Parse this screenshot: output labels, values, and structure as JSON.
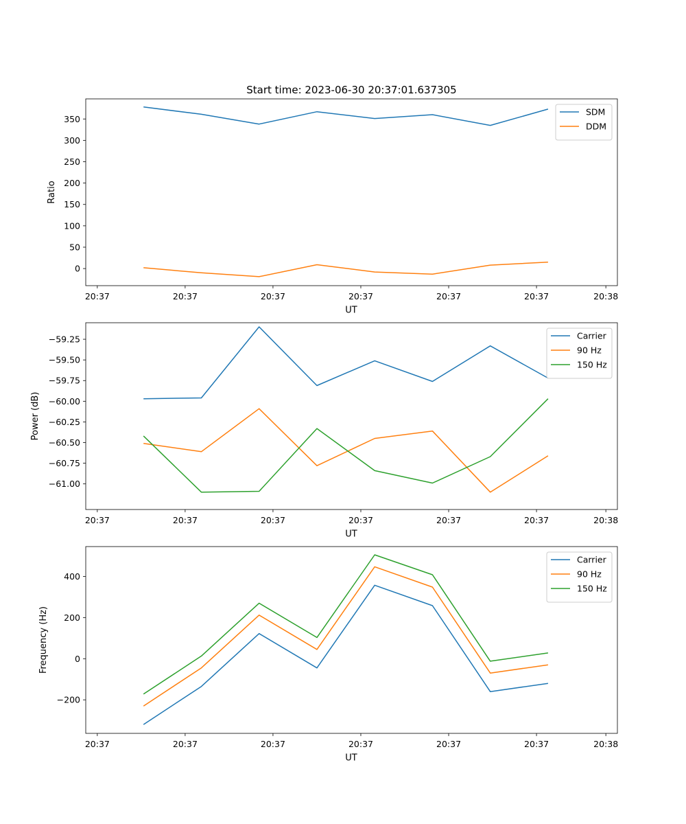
{
  "figure_title": "Start time: 2023-06-30 20:37:01.637305",
  "colors": {
    "blue": "#1f77b4",
    "orange": "#ff7f0e",
    "green": "#2ca02c"
  },
  "chart_data": [
    {
      "type": "line",
      "title": "Start time: 2023-06-30 20:37:01.637305",
      "xlabel": "UT",
      "ylabel": "Ratio",
      "xticklabels": [
        "20:37",
        "20:37",
        "20:37",
        "20:37",
        "20:37",
        "20:37",
        "20:38"
      ],
      "x": [
        1,
        2,
        3,
        4,
        5,
        6,
        7,
        8
      ],
      "xlim": [
        0,
        9.2
      ],
      "xticks": [
        0.2,
        1.72,
        3.24,
        4.76,
        6.28,
        7.8,
        9.0
      ],
      "ylim": [
        -40,
        397
      ],
      "yticks": [
        0,
        50,
        100,
        150,
        200,
        250,
        300,
        350
      ],
      "legend": "top-right",
      "grid": false,
      "series": [
        {
          "name": "SDM",
          "color": "#1f77b4",
          "values": [
            378,
            361,
            338,
            367,
            351,
            360,
            335,
            373
          ]
        },
        {
          "name": "DDM",
          "color": "#ff7f0e",
          "values": [
            2,
            -10,
            -19,
            9,
            -8,
            -13,
            8,
            15
          ]
        }
      ]
    },
    {
      "type": "line",
      "title": "",
      "xlabel": "UT",
      "ylabel": "Power (dB)",
      "xticklabels": [
        "20:37",
        "20:37",
        "20:37",
        "20:37",
        "20:37",
        "20:37",
        "20:38"
      ],
      "x": [
        1,
        2,
        3,
        4,
        5,
        6,
        7,
        8
      ],
      "xlim": [
        0,
        9.2
      ],
      "xticks": [
        0.2,
        1.72,
        3.24,
        4.76,
        6.28,
        7.8,
        9.0
      ],
      "ylim": [
        -61.31,
        -59.05
      ],
      "yticks": [
        -61.0,
        -60.75,
        -60.5,
        -60.25,
        -60.0,
        -59.75,
        -59.5,
        -59.25
      ],
      "yticklabels": [
        "−61.00",
        "−60.75",
        "−60.50",
        "−60.25",
        "−60.00",
        "−59.75",
        "−59.50",
        "−59.25"
      ],
      "legend": "top-right",
      "grid": false,
      "series": [
        {
          "name": "Carrier",
          "color": "#1f77b4",
          "values": [
            -59.97,
            -59.96,
            -59.1,
            -59.81,
            -59.51,
            -59.76,
            -59.33,
            -59.72
          ]
        },
        {
          "name": "90 Hz",
          "color": "#ff7f0e",
          "values": [
            -60.51,
            -60.61,
            -60.09,
            -60.78,
            -60.45,
            -60.36,
            -61.1,
            -60.66
          ]
        },
        {
          "name": "150 Hz",
          "color": "#2ca02c",
          "values": [
            -60.42,
            -61.1,
            -61.09,
            -60.33,
            -60.84,
            -60.99,
            -60.67,
            -59.97
          ]
        }
      ]
    },
    {
      "type": "line",
      "title": "",
      "xlabel": "UT",
      "ylabel": "Frequency (Hz)",
      "xticklabels": [
        "20:37",
        "20:37",
        "20:37",
        "20:37",
        "20:37",
        "20:37",
        "20:38"
      ],
      "x": [
        1,
        2,
        3,
        4,
        5,
        6,
        7,
        8
      ],
      "xlim": [
        0,
        9.2
      ],
      "xticks": [
        0.2,
        1.72,
        3.24,
        4.76,
        6.28,
        7.8,
        9.0
      ],
      "ylim": [
        -363,
        545
      ],
      "yticks": [
        -200,
        0,
        200,
        400
      ],
      "yticklabels": [
        "−200",
        "0",
        "200",
        "400"
      ],
      "legend": "top-right",
      "grid": false,
      "series": [
        {
          "name": "Carrier",
          "color": "#1f77b4",
          "values": [
            -320,
            -135,
            122,
            -45,
            357,
            258,
            -160,
            -120
          ]
        },
        {
          "name": "90 Hz",
          "color": "#ff7f0e",
          "values": [
            -230,
            -45,
            212,
            45,
            447,
            348,
            -70,
            -30
          ]
        },
        {
          "name": "150 Hz",
          "color": "#2ca02c",
          "values": [
            -172,
            13,
            270,
            103,
            505,
            408,
            -12,
            28
          ]
        }
      ]
    }
  ]
}
